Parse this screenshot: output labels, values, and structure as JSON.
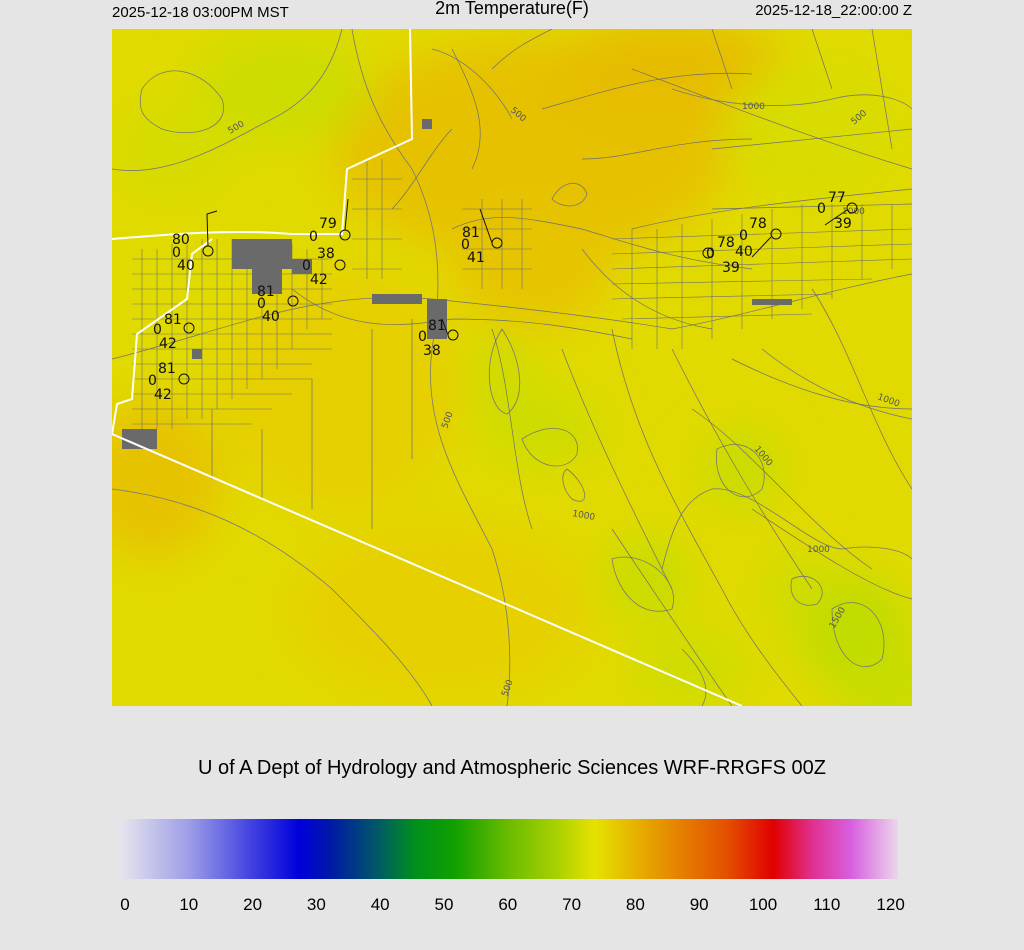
{
  "header": {
    "local_time": "2025-12-18 03:00PM MST",
    "title": "2m Temperature(F)",
    "valid_time": "2025-12-18_22:00:00 Z"
  },
  "credit": "U of A Dept of Hydrology and Atmospheric Sciences WRF-RRGFS 00Z",
  "colorbar": {
    "ticks": [
      "0",
      "10",
      "20",
      "30",
      "40",
      "50",
      "60",
      "70",
      "80",
      "90",
      "100",
      "110",
      "120"
    ]
  },
  "contour_labels": [
    "500",
    "1000",
    "500",
    "500",
    "500",
    "1000",
    "1000",
    "1000",
    "1500",
    "500",
    "1000",
    "1000"
  ],
  "stations": [
    {
      "temp": "80",
      "wind": "0",
      "dew": "40"
    },
    {
      "temp": "79",
      "wind": "0",
      "dew": "38"
    },
    {
      "temp": "0",
      "wind": "",
      "dew": "42"
    },
    {
      "temp": "81",
      "wind": "0",
      "dew": "40"
    },
    {
      "temp": "81",
      "wind": "0",
      "dew": "42"
    },
    {
      "temp": "81",
      "wind": "0",
      "dew": "42"
    },
    {
      "temp": "81",
      "wind": "0",
      "dew": "41"
    },
    {
      "temp": "81",
      "wind": "0",
      "dew": "38"
    },
    {
      "temp": "78",
      "wind": "0",
      "dew": "40"
    },
    {
      "temp": "78",
      "wind": "0",
      "dew": "39"
    },
    {
      "temp": "77",
      "wind": "0",
      "dew": "39"
    }
  ]
}
